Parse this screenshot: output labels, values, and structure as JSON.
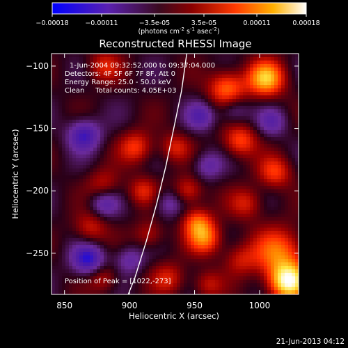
{
  "colorbar": {
    "ticks": [
      "-0.00018",
      "-0.00011",
      "-3.5e-05",
      "3.5e-05",
      "0.00011",
      "0.00018"
    ],
    "tick_values": [
      -0.00018,
      -0.00011,
      -3.5e-05,
      3.5e-05,
      0.00011,
      0.00018
    ],
    "units_main": "(photons cm",
    "units_exp1": "-2",
    "units_mid1": " s",
    "units_exp2": "-1",
    "units_mid2": " asec",
    "units_exp3": "-2",
    "units_end": ")"
  },
  "annotations": {
    "time_range": "1-Jun-2004 09:32:52.000 to 09:37:04.000",
    "detectors": "Detectors: 4F 5F 6F 7F 8F, Att 0",
    "energy": "Energy Range: 25.0 - 50.0 keV",
    "clean": "Clean     Total counts: 4.05E+03",
    "peak": "Position of Peak = [1022,-273]"
  },
  "footer_date": "21-Jun-2013 04:12",
  "chart_data": {
    "type": "heatmap",
    "title": "Reconstructed RHESSI Image",
    "xlabel": "Heliocentric X (arcsec)",
    "ylabel": "Heliocentric Y (arcsec)",
    "xlim": [
      840,
      1030
    ],
    "ylim": [
      -283,
      -90
    ],
    "x_ticks": [
      850,
      900,
      950,
      1000
    ],
    "y_ticks": [
      -100,
      -150,
      -200,
      -250
    ],
    "colormap": [
      "#0000ff",
      "#4b1aa8",
      "#6a2a9a",
      "#2a0018",
      "#9a0000",
      "#ff2a00",
      "#ff8a00",
      "#ffe640",
      "#ffffff"
    ],
    "peak": [
      1022,
      -273
    ],
    "limb_curve": [
      [
        944,
        -90
      ],
      [
        940,
        -120
      ],
      [
        934,
        -150
      ],
      [
        928,
        -180
      ],
      [
        921,
        -210
      ],
      [
        913,
        -240
      ],
      [
        904,
        -270
      ],
      [
        899,
        -283
      ]
    ],
    "features": [
      {
        "x": 1022,
        "y": -273,
        "v": 1.0,
        "r": 10
      },
      {
        "x": 1005,
        "y": -110,
        "v": 0.8,
        "r": 10
      },
      {
        "x": 1015,
        "y": -250,
        "v": 0.6,
        "r": 14
      },
      {
        "x": 975,
        "y": -118,
        "v": 0.6,
        "r": 10
      },
      {
        "x": 958,
        "y": -238,
        "v": 0.6,
        "r": 9
      },
      {
        "x": 952,
        "y": -225,
        "v": 0.5,
        "r": 8
      },
      {
        "x": 985,
        "y": -160,
        "v": 0.5,
        "r": 9
      },
      {
        "x": 1012,
        "y": -185,
        "v": 0.45,
        "r": 9
      },
      {
        "x": 945,
        "y": -200,
        "v": 0.4,
        "r": 8
      },
      {
        "x": 905,
        "y": -165,
        "v": 0.45,
        "r": 9
      },
      {
        "x": 880,
        "y": -100,
        "v": 0.35,
        "r": 9
      },
      {
        "x": 910,
        "y": -200,
        "v": 0.35,
        "r": 8
      },
      {
        "x": 880,
        "y": -195,
        "v": 0.3,
        "r": 9
      },
      {
        "x": 870,
        "y": -230,
        "v": 0.35,
        "r": 9
      },
      {
        "x": 935,
        "y": -165,
        "v": 0.35,
        "r": 8
      },
      {
        "x": 990,
        "y": -210,
        "v": 0.35,
        "r": 9
      },
      {
        "x": 985,
        "y": -255,
        "v": 0.3,
        "r": 9
      },
      {
        "x": 930,
        "y": -270,
        "v": 0.35,
        "r": 9
      },
      {
        "x": 880,
        "y": -270,
        "v": 0.3,
        "r": 8
      },
      {
        "x": 915,
        "y": -235,
        "v": 0.3,
        "r": 8
      },
      {
        "x": 960,
        "y": -275,
        "v": 0.3,
        "r": 8
      },
      {
        "x": 865,
        "y": -155,
        "v": -0.5,
        "r": 9
      },
      {
        "x": 868,
        "y": -255,
        "v": -0.55,
        "r": 9
      },
      {
        "x": 880,
        "y": -210,
        "v": -0.35,
        "r": 8
      },
      {
        "x": 930,
        "y": -210,
        "v": -0.3,
        "r": 8
      },
      {
        "x": 980,
        "y": -135,
        "v": -0.3,
        "r": 8
      },
      {
        "x": 955,
        "y": -140,
        "v": -0.35,
        "r": 8
      },
      {
        "x": 1010,
        "y": -145,
        "v": -0.3,
        "r": 8
      },
      {
        "x": 960,
        "y": -180,
        "v": -0.3,
        "r": 8
      },
      {
        "x": 900,
        "y": -255,
        "v": -0.3,
        "r": 8
      }
    ]
  }
}
